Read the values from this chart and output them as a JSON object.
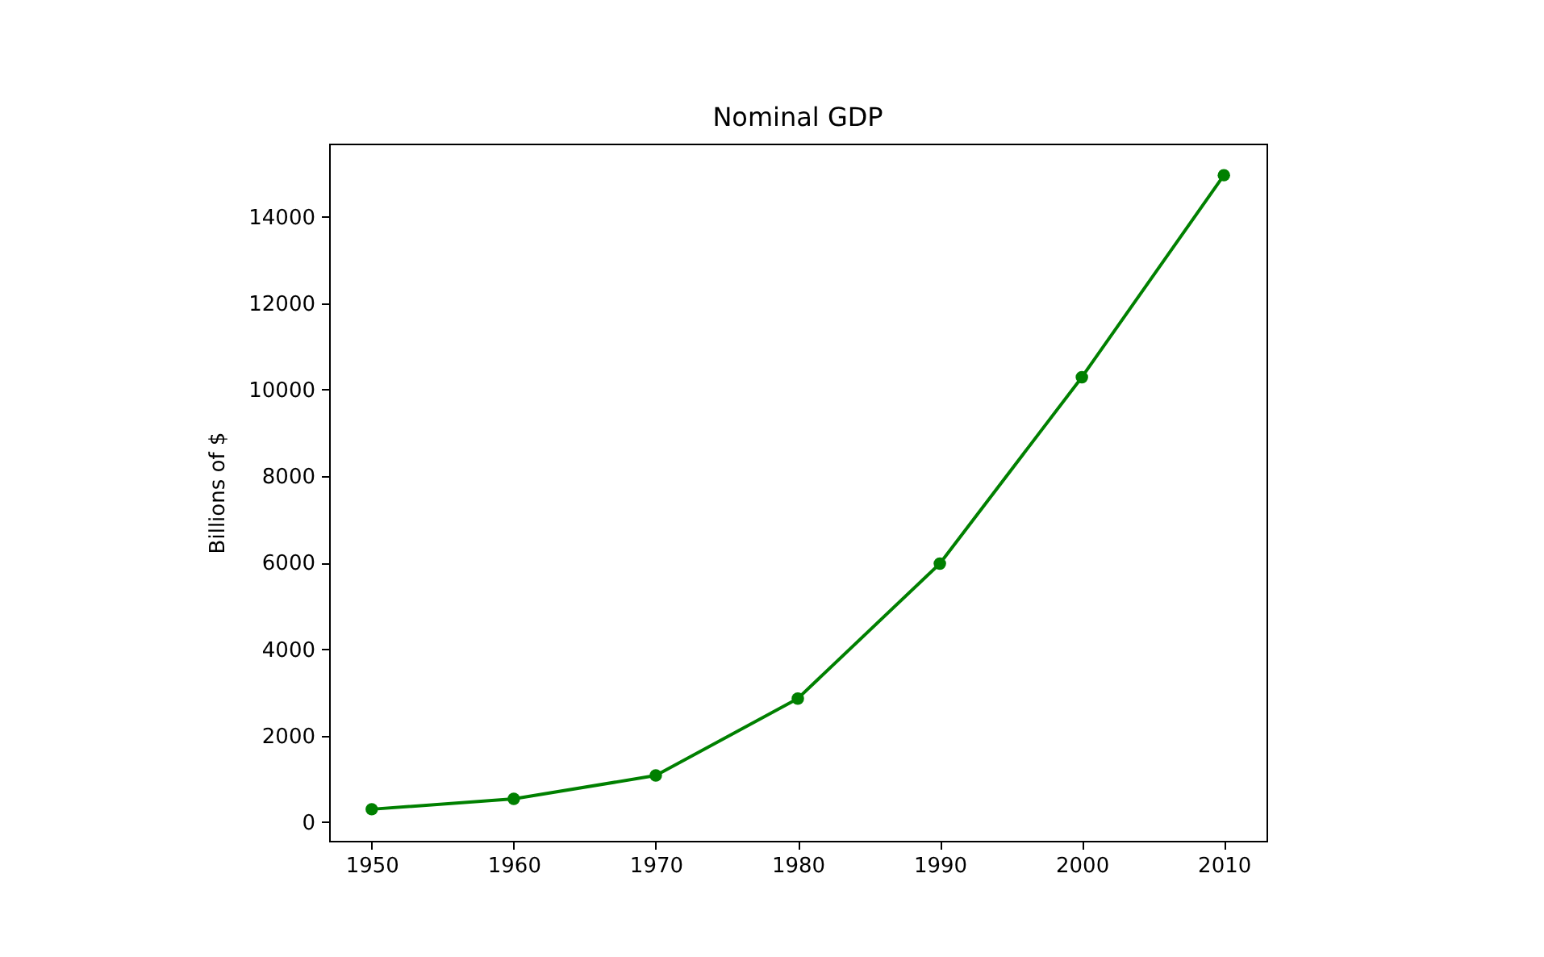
{
  "chart_data": {
    "type": "line",
    "title": "Nominal GDP",
    "ylabel": "Billions of $",
    "x": [
      1950,
      1960,
      1970,
      1980,
      1990,
      2000,
      2010
    ],
    "series": [
      {
        "color": "#008000",
        "values": [
          300,
          540,
          1080,
          2860,
          5980,
          10290,
          14960
        ]
      }
    ],
    "xlim": [
      1947,
      2013
    ],
    "xticks": [
      1950,
      1960,
      1970,
      1980,
      1990,
      2000,
      2010
    ],
    "ylim": [
      -430,
      15690
    ],
    "yticks": [
      0,
      2000,
      4000,
      6000,
      8000,
      10000,
      12000,
      14000
    ],
    "marker": "circle",
    "line_style": "solid",
    "grid": false
  }
}
